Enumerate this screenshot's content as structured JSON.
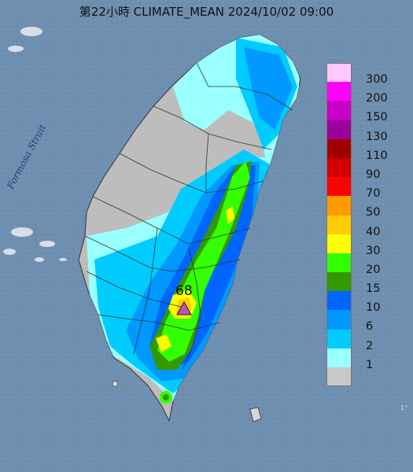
{
  "map": {
    "title": "第22小時  CLIMATE_MEAN 2024/10/02 09:00",
    "sea_label": "Formosa Strait",
    "max_value": "68",
    "max_marker_color": "#c050c0",
    "sea_color": "#6f8fb0",
    "corner_mark": "1°"
  },
  "legend": {
    "items": [
      {
        "label": "300",
        "color": "#ffc8ff"
      },
      {
        "label": "200",
        "color": "#ff00ff"
      },
      {
        "label": "150",
        "color": "#c800c8"
      },
      {
        "label": "130",
        "color": "#9a009a"
      },
      {
        "label": "110",
        "color": "#a00000"
      },
      {
        "label": "90",
        "color": "#d20000"
      },
      {
        "label": "70",
        "color": "#ff0000"
      },
      {
        "label": "50",
        "color": "#ff9900"
      },
      {
        "label": "40",
        "color": "#ffcc00"
      },
      {
        "label": "30",
        "color": "#ffff00"
      },
      {
        "label": "20",
        "color": "#33ff00"
      },
      {
        "label": "15",
        "color": "#339900"
      },
      {
        "label": "10",
        "color": "#0066ff"
      },
      {
        "label": "6",
        "color": "#0099ff"
      },
      {
        "label": "2",
        "color": "#00ccff"
      },
      {
        "label": "1",
        "color": "#99ffff"
      },
      {
        "label": "",
        "color": "#c8c8c8"
      }
    ]
  }
}
